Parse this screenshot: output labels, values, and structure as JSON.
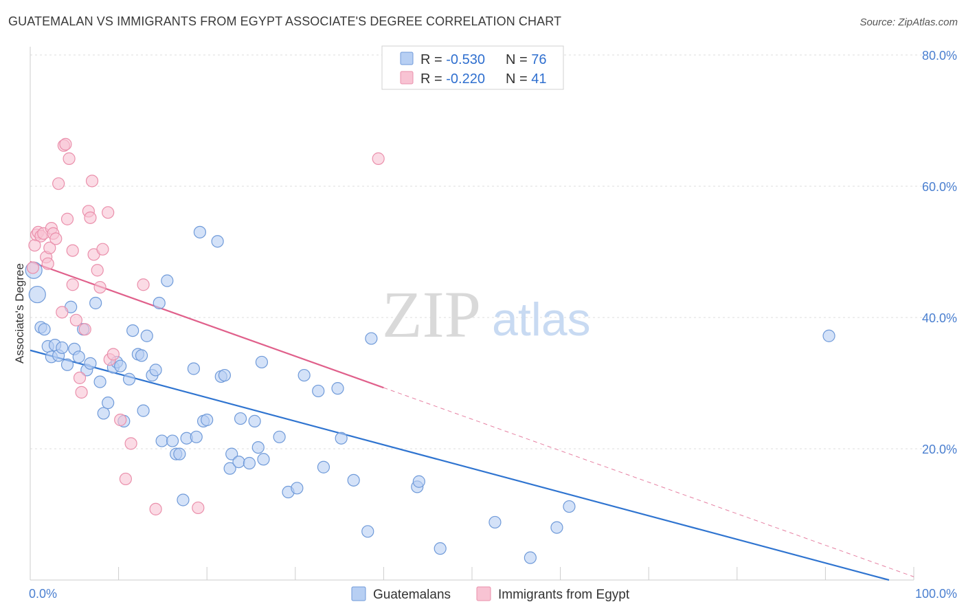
{
  "title": "GUATEMALAN VS IMMIGRANTS FROM EGYPT ASSOCIATE'S DEGREE CORRELATION CHART",
  "source": "Source: ZipAtlas.com",
  "watermark": {
    "zip": "ZIP",
    "atlas": "atlas"
  },
  "colors": {
    "blue_fill": "#b7cff3",
    "blue_stroke": "#6f9ad9",
    "blue_line": "#2f74d0",
    "pink_fill": "#f8c3d3",
    "pink_stroke": "#ea8fab",
    "pink_line": "#e0608b",
    "grid": "#dddddd",
    "axis_text": "#4a7fd0"
  },
  "legend": {
    "rows": [
      {
        "r_label": "R = ",
        "r_value": "-0.530",
        "n_label": "N = ",
        "n_value": "76"
      },
      {
        "r_label": "R = ",
        "r_value": "-0.220",
        "n_label": "N = ",
        "n_value": "41"
      }
    ]
  },
  "chart_data": {
    "type": "scatter",
    "xlabel": "",
    "ylabel": "Associate's Degree",
    "xlim": [
      0,
      100
    ],
    "ylim": [
      0,
      80
    ],
    "x_tick_labels": [
      "0.0%",
      "100.0%"
    ],
    "y_ticks": [
      20,
      40,
      60,
      80
    ],
    "y_tick_labels": [
      "20.0%",
      "40.0%",
      "60.0%",
      "80.0%"
    ],
    "grid": true,
    "legend_position": "bottom",
    "series": [
      {
        "name": "Guatemalans",
        "points": [
          [
            0.4,
            47.2
          ],
          [
            0.8,
            43.5
          ],
          [
            1.2,
            38.5
          ],
          [
            1.6,
            38.2
          ],
          [
            2.0,
            35.6
          ],
          [
            2.4,
            34.0
          ],
          [
            2.8,
            35.8
          ],
          [
            3.2,
            34.2
          ],
          [
            3.6,
            35.4
          ],
          [
            4.2,
            32.8
          ],
          [
            4.6,
            41.6
          ],
          [
            5.0,
            35.2
          ],
          [
            5.5,
            34.0
          ],
          [
            6.0,
            38.2
          ],
          [
            6.4,
            32.0
          ],
          [
            6.8,
            33.0
          ],
          [
            7.4,
            42.2
          ],
          [
            7.9,
            30.2
          ],
          [
            8.3,
            25.4
          ],
          [
            8.8,
            27.0
          ],
          [
            9.4,
            32.4
          ],
          [
            9.8,
            33.2
          ],
          [
            10.2,
            32.6
          ],
          [
            10.6,
            24.2
          ],
          [
            11.2,
            30.6
          ],
          [
            11.6,
            38.0
          ],
          [
            12.2,
            34.4
          ],
          [
            12.6,
            34.2
          ],
          [
            12.8,
            25.8
          ],
          [
            13.2,
            37.2
          ],
          [
            13.8,
            31.2
          ],
          [
            14.2,
            32.0
          ],
          [
            14.6,
            42.2
          ],
          [
            14.9,
            21.2
          ],
          [
            15.5,
            45.6
          ],
          [
            16.1,
            21.2
          ],
          [
            16.5,
            19.2
          ],
          [
            16.9,
            19.2
          ],
          [
            17.3,
            12.2
          ],
          [
            17.7,
            21.6
          ],
          [
            18.5,
            32.2
          ],
          [
            18.8,
            21.8
          ],
          [
            19.2,
            53.0
          ],
          [
            19.6,
            24.2
          ],
          [
            20.0,
            24.4
          ],
          [
            21.2,
            51.6
          ],
          [
            21.6,
            31.0
          ],
          [
            22.0,
            31.2
          ],
          [
            22.6,
            17.0
          ],
          [
            22.8,
            19.2
          ],
          [
            23.6,
            18.0
          ],
          [
            23.8,
            24.6
          ],
          [
            24.8,
            17.8
          ],
          [
            25.4,
            24.2
          ],
          [
            25.8,
            20.2
          ],
          [
            26.2,
            33.2
          ],
          [
            26.4,
            18.4
          ],
          [
            28.2,
            21.8
          ],
          [
            29.2,
            13.4
          ],
          [
            30.2,
            14.0
          ],
          [
            31.0,
            31.2
          ],
          [
            32.6,
            28.8
          ],
          [
            33.2,
            17.2
          ],
          [
            34.8,
            29.2
          ],
          [
            35.2,
            21.6
          ],
          [
            36.6,
            15.2
          ],
          [
            38.2,
            7.4
          ],
          [
            38.6,
            36.8
          ],
          [
            43.8,
            14.2
          ],
          [
            44.0,
            15.0
          ],
          [
            46.4,
            4.8
          ],
          [
            52.6,
            8.8
          ],
          [
            56.6,
            3.4
          ],
          [
            59.6,
            8.0
          ],
          [
            61.0,
            11.2
          ],
          [
            90.4,
            37.2
          ]
        ],
        "trend": {
          "x": [
            0,
            97.2
          ],
          "y": [
            35.0,
            0
          ]
        }
      },
      {
        "name": "Immigrants from Egypt",
        "points": [
          [
            0.3,
            47.6
          ],
          [
            0.5,
            51.0
          ],
          [
            0.7,
            52.6
          ],
          [
            0.9,
            53.0
          ],
          [
            1.2,
            52.4
          ],
          [
            1.5,
            52.8
          ],
          [
            1.8,
            49.2
          ],
          [
            2.0,
            48.2
          ],
          [
            2.2,
            50.6
          ],
          [
            2.4,
            53.6
          ],
          [
            2.6,
            52.8
          ],
          [
            2.9,
            52.0
          ],
          [
            3.2,
            60.4
          ],
          [
            3.6,
            40.8
          ],
          [
            3.8,
            66.2
          ],
          [
            4.0,
            66.4
          ],
          [
            4.2,
            55.0
          ],
          [
            4.4,
            64.2
          ],
          [
            4.8,
            45.0
          ],
          [
            5.2,
            39.6
          ],
          [
            5.6,
            30.8
          ],
          [
            5.8,
            28.6
          ],
          [
            6.2,
            38.2
          ],
          [
            6.6,
            56.2
          ],
          [
            6.8,
            55.2
          ],
          [
            7.0,
            60.8
          ],
          [
            7.2,
            49.6
          ],
          [
            7.6,
            47.2
          ],
          [
            7.9,
            44.6
          ],
          [
            8.2,
            50.4
          ],
          [
            8.8,
            56.0
          ],
          [
            9.0,
            33.6
          ],
          [
            9.4,
            34.4
          ],
          [
            10.2,
            24.4
          ],
          [
            10.8,
            15.4
          ],
          [
            11.4,
            20.8
          ],
          [
            12.8,
            45.0
          ],
          [
            14.2,
            10.8
          ],
          [
            19.0,
            11.0
          ],
          [
            39.4,
            64.2
          ],
          [
            4.8,
            50.2
          ]
        ],
        "trend": {
          "x": [
            0,
            40.0
          ],
          "y": [
            48.5,
            29.3
          ]
        },
        "trend_dashed": {
          "x": [
            40.0,
            100
          ],
          "y": [
            29.3,
            0.5
          ]
        }
      }
    ]
  }
}
